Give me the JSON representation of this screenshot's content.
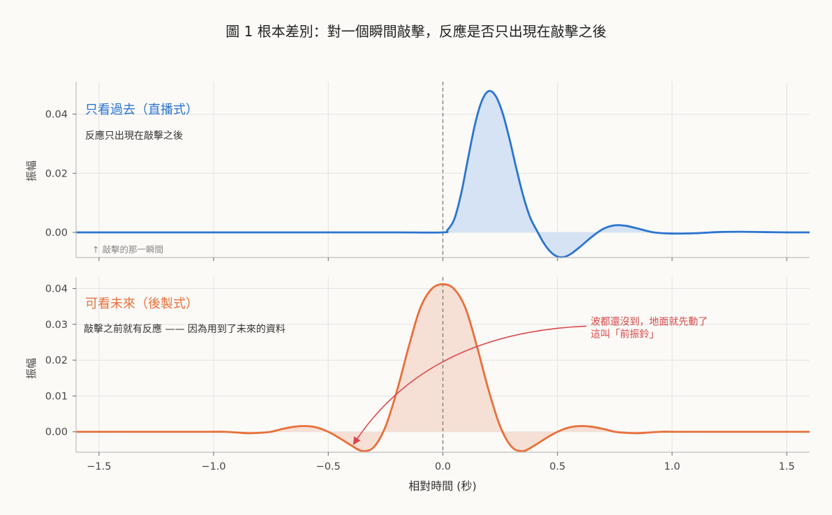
{
  "figure_title": "圖 1  根本差別：對一個瞬間敲擊，反應是否只出現在敲擊之後",
  "colors": {
    "causal": "#2b74d0",
    "causal_fill": "#d3e2f4",
    "acausal": "#e8703a",
    "acausal_fill": "#f5ddd2",
    "annotation": "#d8484a",
    "impulse_line": "#7a7a7a",
    "grid": "#e3e3e3",
    "spine": "#bdbdbd",
    "background": "#fbfaf7"
  },
  "chart_data": [
    {
      "type": "line",
      "panel": "top",
      "title": "只看過去（直播式）",
      "subtitle": "反應只出現在敲擊之後",
      "ylabel": "振幅",
      "xlim": [
        -1.6,
        1.6
      ],
      "ylim": [
        -0.0085,
        0.051
      ],
      "yticks": [
        0.0,
        0.02,
        0.04
      ],
      "ytick_labels": [
        "0.00",
        "0.02",
        "0.04"
      ],
      "grid": true,
      "impulse_x": 0.0,
      "impulse_note": "↑ 敲擊的那一瞬間",
      "series": [
        {
          "x": [
            -1.6,
            -1.4,
            -1.2,
            -1.0,
            -0.8,
            -0.6,
            -0.4,
            -0.2,
            0.0,
            0.02,
            0.05,
            0.08,
            0.11,
            0.14,
            0.17,
            0.2,
            0.23,
            0.26,
            0.29,
            0.32,
            0.35,
            0.38,
            0.41,
            0.44,
            0.47,
            0.5,
            0.53,
            0.56,
            0.6,
            0.65,
            0.7,
            0.75,
            0.8,
            0.86,
            0.92,
            1.0,
            1.1,
            1.2,
            1.3,
            1.4,
            1.5,
            1.6
          ],
          "y": [
            0,
            0,
            0,
            0,
            0,
            0,
            0,
            0,
            0,
            0.0008,
            0.0045,
            0.0132,
            0.0251,
            0.0365,
            0.0445,
            0.0478,
            0.0462,
            0.0405,
            0.0318,
            0.0218,
            0.0125,
            0.0052,
            0.0006,
            -0.0036,
            -0.0066,
            -0.0082,
            -0.0083,
            -0.0072,
            -0.0048,
            -0.0015,
            0.0012,
            0.0024,
            0.0022,
            0.0011,
            0.0,
            -0.0004,
            -0.0003,
            0.0001,
            0.0002,
            0.0001,
            0.0,
            0.0
          ]
        }
      ]
    },
    {
      "type": "line",
      "panel": "bottom",
      "title": "可看未來（後製式）",
      "subtitle": "敲擊之前就有反應 —— 因為用到了未來的資料",
      "ylabel": "振幅",
      "xlabel": "相對時間 (秒)",
      "xlim": [
        -1.6,
        1.6
      ],
      "ylim": [
        -0.0057,
        0.0432
      ],
      "yticks": [
        0.0,
        0.01,
        0.02,
        0.03,
        0.04
      ],
      "ytick_labels": [
        "0.00",
        "0.01",
        "0.02",
        "0.03",
        "0.04"
      ],
      "xticks": [
        -1.5,
        -1.0,
        -0.5,
        0.0,
        0.5,
        1.0,
        1.5
      ],
      "xtick_labels": [
        "−1.5",
        "−1.0",
        "−0.5",
        "0.0",
        "0.5",
        "1.0",
        "1.5"
      ],
      "grid": true,
      "impulse_x": 0.0,
      "annotation": {
        "lines": [
          "波都還沒到，地面就先動了",
          "這叫「前振鈴」"
        ],
        "text_at": [
          0.62,
          0.0295
        ],
        "arrow_to": [
          -0.39,
          -0.0035
        ]
      },
      "series": [
        {
          "x": [
            -1.6,
            -1.5,
            -1.4,
            -1.3,
            -1.2,
            -1.1,
            -1.0,
            -0.95,
            -0.9,
            -0.85,
            -0.8,
            -0.75,
            -0.7,
            -0.65,
            -0.6,
            -0.55,
            -0.5,
            -0.45,
            -0.4,
            -0.35,
            -0.3,
            -0.25,
            -0.2,
            -0.15,
            -0.1,
            -0.05,
            0.0,
            0.05,
            0.1,
            0.15,
            0.2,
            0.25,
            0.3,
            0.35,
            0.4,
            0.45,
            0.5,
            0.55,
            0.6,
            0.65,
            0.7,
            0.75,
            0.8,
            0.85,
            0.9,
            0.95,
            1.0,
            1.1,
            1.2,
            1.3,
            1.4,
            1.5,
            1.6
          ],
          "y": [
            0,
            0,
            0,
            0,
            0,
            0,
            0,
            0,
            -0.0002,
            -0.0004,
            -0.0003,
            0.0,
            0.0008,
            0.0014,
            0.0016,
            0.0012,
            0.0,
            -0.0018,
            -0.0038,
            -0.0054,
            -0.0042,
            0.0015,
            0.0115,
            0.0235,
            0.0343,
            0.0398,
            0.0412,
            0.0398,
            0.0343,
            0.0235,
            0.0115,
            0.0015,
            -0.0042,
            -0.0054,
            -0.0038,
            -0.0018,
            0.0,
            0.0012,
            0.0016,
            0.0014,
            0.0008,
            0.0,
            -0.0003,
            -0.0004,
            -0.0002,
            0,
            0,
            0,
            0,
            0,
            0,
            0,
            0
          ]
        }
      ]
    }
  ]
}
